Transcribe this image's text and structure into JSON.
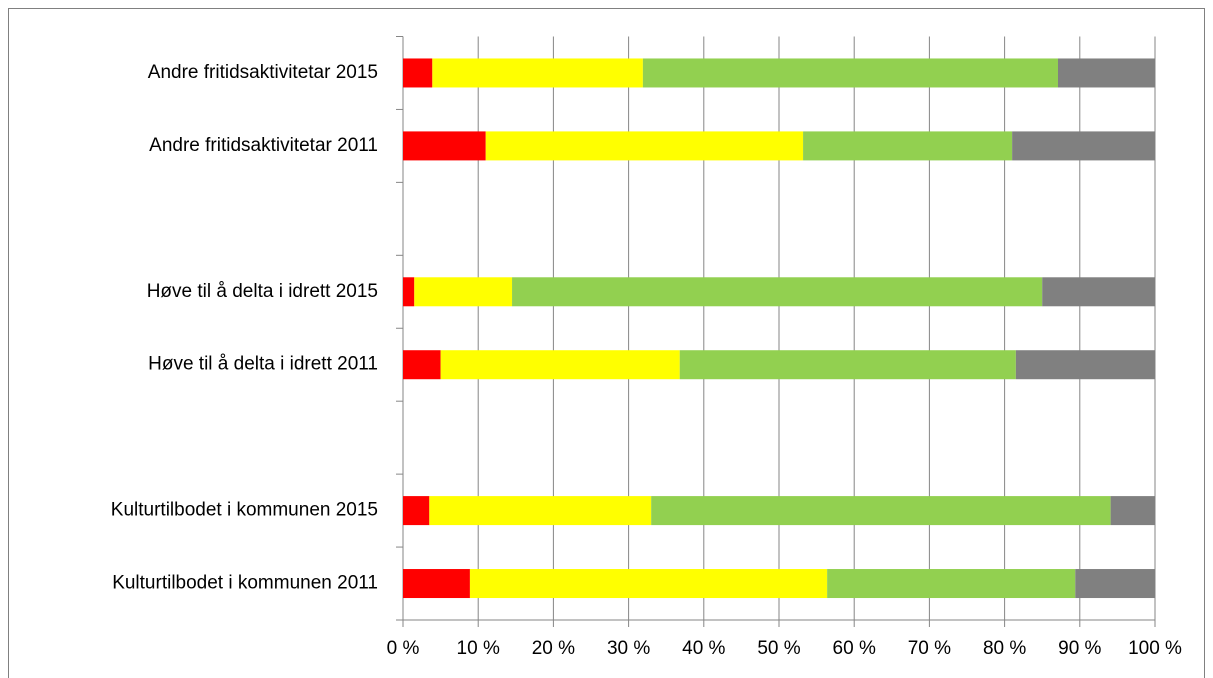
{
  "chart_data": {
    "type": "bar",
    "orientation": "horizontal",
    "stacked": true,
    "categories": [
      "Andre fritidsaktivitetar 2015",
      "Andre fritidsaktivitetar 2011",
      null,
      "Høve til å delta i idrett 2015",
      "Høve til å delta i idrett 2011",
      null,
      "Kulturtilbodet i kommunen 2015",
      "Kulturtilbodet i kommunen 2011"
    ],
    "series": [
      {
        "color": "#ff0000",
        "values": [
          3.9,
          11.0,
          null,
          1.5,
          5.0,
          null,
          3.5,
          8.9
        ]
      },
      {
        "color": "#ffff00",
        "values": [
          28.0,
          42.2,
          null,
          13.0,
          31.8,
          null,
          29.5,
          47.5
        ]
      },
      {
        "color": "#92d050",
        "values": [
          55.2,
          27.8,
          null,
          70.5,
          44.7,
          null,
          61.1,
          33.0
        ]
      },
      {
        "color": "#808080",
        "values": [
          12.9,
          19.0,
          null,
          15.0,
          18.5,
          null,
          5.9,
          10.6
        ]
      }
    ],
    "xlim": [
      0,
      100
    ],
    "xticks": [
      {
        "value": 0,
        "label": "0 %"
      },
      {
        "value": 10,
        "label": "10 %"
      },
      {
        "value": 20,
        "label": "20 %"
      },
      {
        "value": 30,
        "label": "30 %"
      },
      {
        "value": 40,
        "label": "40 %"
      },
      {
        "value": 50,
        "label": "50 %"
      },
      {
        "value": 60,
        "label": "60 %"
      },
      {
        "value": 70,
        "label": "70 %"
      },
      {
        "value": 80,
        "label": "80 %"
      },
      {
        "value": 90,
        "label": "90 %"
      },
      {
        "value": 100,
        "label": "100 %"
      }
    ],
    "grid": true
  }
}
